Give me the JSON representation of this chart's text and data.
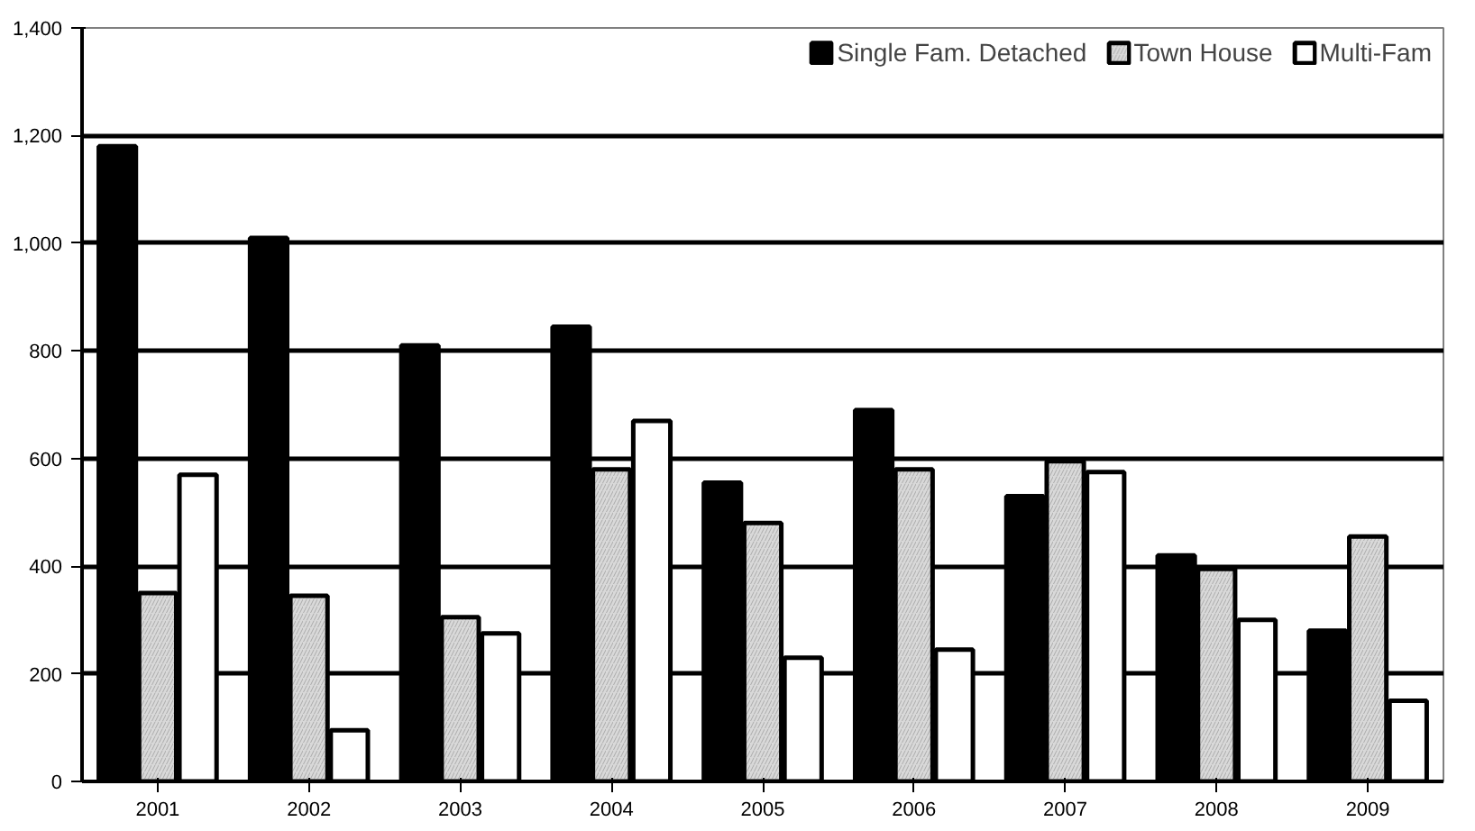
{
  "chart_data": {
    "type": "bar",
    "categories": [
      "2001",
      "2002",
      "2003",
      "2004",
      "2005",
      "2006",
      "2007",
      "2008",
      "2009"
    ],
    "series": [
      {
        "name": "Single Fam. Detached",
        "color": "#000000",
        "values": [
          1180,
          1010,
          810,
          845,
          555,
          690,
          530,
          420,
          280
        ]
      },
      {
        "name": "Town House",
        "color": "#d9d9d9",
        "values": [
          350,
          345,
          305,
          580,
          480,
          580,
          595,
          395,
          455
        ]
      },
      {
        "name": "Multi-Fam",
        "color": "#ffffff",
        "values": [
          570,
          95,
          275,
          670,
          230,
          245,
          575,
          300,
          150
        ]
      }
    ],
    "ylim": [
      0,
      1400
    ],
    "yticks": [
      {
        "value": 0,
        "label": "0"
      },
      {
        "value": 200,
        "label": "200"
      },
      {
        "value": 400,
        "label": "400"
      },
      {
        "value": 600,
        "label": "600"
      },
      {
        "value": 800,
        "label": "800"
      },
      {
        "value": 1000,
        "label": "1,000"
      },
      {
        "value": 1200,
        "label": "1,200"
      },
      {
        "value": 1400,
        "label": "1,400"
      }
    ],
    "grid": "y",
    "legend": "top right"
  }
}
